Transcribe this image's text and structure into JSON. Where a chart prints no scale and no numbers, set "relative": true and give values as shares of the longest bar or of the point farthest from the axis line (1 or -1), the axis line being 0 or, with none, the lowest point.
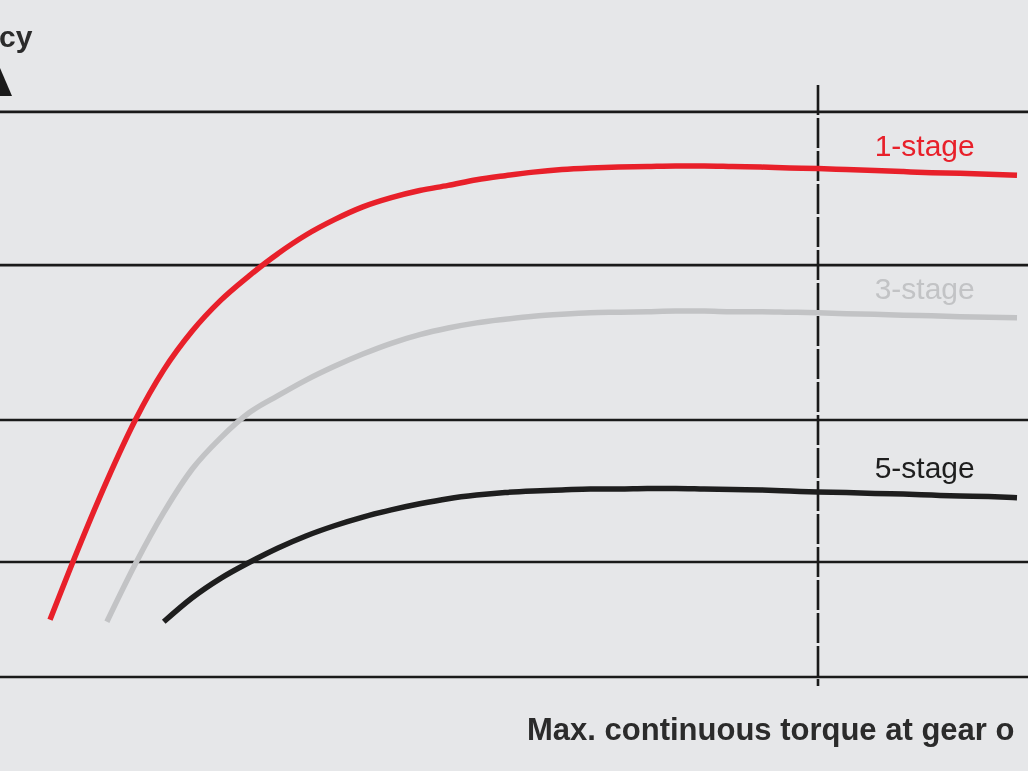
{
  "chart_data": {
    "type": "line",
    "xlabel": "Max. continuous torque at gear o",
    "ylabel": "cy",
    "relative": true,
    "categories": [
      null,
      null,
      null,
      null,
      null,
      null,
      null,
      null,
      null,
      null,
      null,
      null,
      null,
      null,
      null,
      null,
      null,
      null,
      null,
      null,
      null,
      null,
      null,
      null,
      null,
      null,
      null,
      null,
      null,
      null,
      null,
      null,
      null,
      null,
      null
    ],
    "series": [
      {
        "name": "1-stage",
        "color": "#e8202a",
        "values": [
          0.112,
          0.252,
          0.384,
          0.503,
          0.601,
          0.677,
          0.737,
          0.785,
          0.828,
          0.865,
          0.895,
          0.92,
          0.938,
          0.952,
          0.962,
          0.973,
          0.981,
          0.988,
          0.993,
          0.996,
          0.998,
          0.999,
          1,
          1,
          0.999,
          0.998,
          0.996,
          0.995,
          0.993,
          0.991,
          0.989,
          0.987,
          0.986,
          0.984,
          0.982
        ]
      },
      {
        "name": "3-stage",
        "color": "#c2c3c5",
        "values": [
          null,
          null,
          0.108,
          0.221,
          0.322,
          0.407,
          0.468,
          0.517,
          0.55,
          0.581,
          0.608,
          0.632,
          0.653,
          0.67,
          0.683,
          0.693,
          0.7,
          0.706,
          0.71,
          0.713,
          0.714,
          0.715,
          0.716,
          0.716,
          0.715,
          0.715,
          0.714,
          0.713,
          0.711,
          0.71,
          0.708,
          0.707,
          0.705,
          0.704,
          0.703
        ]
      },
      {
        "name": "5-stage",
        "color": "#1e1e1e",
        "values": [
          null,
          null,
          null,
          null,
          0.108,
          0.155,
          0.193,
          0.224,
          0.252,
          0.276,
          0.296,
          0.313,
          0.327,
          0.339,
          0.349,
          0.356,
          0.361,
          0.364,
          0.366,
          0.368,
          0.368,
          0.369,
          0.369,
          0.368,
          0.367,
          0.366,
          0.364,
          0.362,
          0.361,
          0.359,
          0.358,
          0.356,
          0.354,
          0.353,
          0.351
        ]
      }
    ],
    "ref_lines": [
      {
        "axis": "y",
        "value": 1.106
      },
      {
        "axis": "y",
        "value": 0.806
      },
      {
        "axis": "y",
        "value": 0.503
      },
      {
        "axis": "y",
        "value": 0.225
      }
    ]
  }
}
